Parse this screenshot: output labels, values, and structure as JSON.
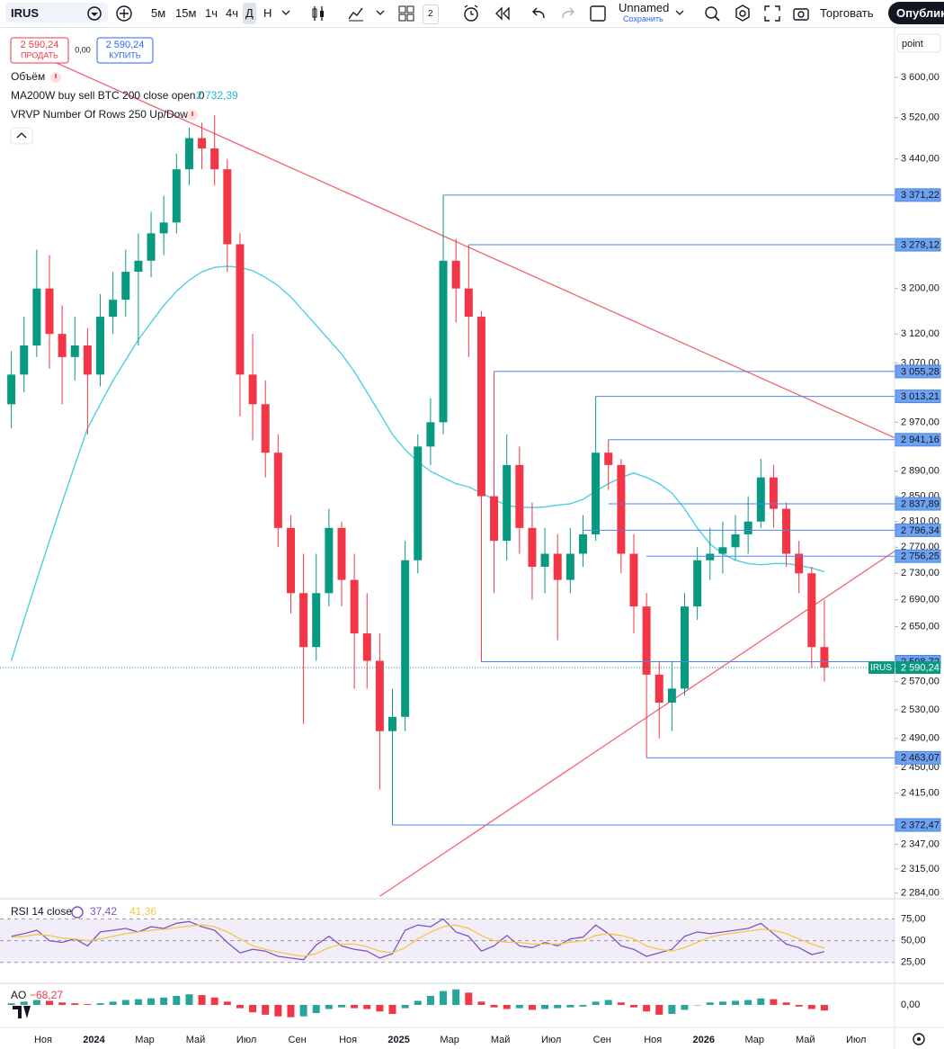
{
  "toolbar": {
    "symbol": "IRUS",
    "intervals": [
      "5м",
      "15м",
      "1ч",
      "4ч",
      "Д",
      "Н"
    ],
    "layouts_count": "2",
    "layout_name": "Unnamed",
    "save": "Сохранить",
    "trade": "Торговать",
    "publish": "Опублико"
  },
  "order_panel": {
    "sell_price": "2 590,24",
    "sell": "ПРОДАТЬ",
    "spread": "0,00",
    "buy_price": "2 590,24",
    "buy": "КУПИТЬ"
  },
  "legend": {
    "volume": "Объём",
    "vrvp": "VRVP Number Of Rows 250 Up/Down"
  },
  "chart_data": [
    {
      "type": "candlestick",
      "scale_label": "point",
      "log_scale": true,
      "grid": false,
      "up_color": "#089981",
      "down_color": "#f23645",
      "categories": [
        null,
        null,
        null,
        "Ноя",
        null,
        null,
        null,
        "2024",
        null,
        null,
        null,
        "Мар",
        null,
        null,
        null,
        "Май",
        null,
        null,
        null,
        "Июл",
        null,
        null,
        null,
        "Сен",
        null,
        null,
        null,
        "Ноя",
        null,
        null,
        null,
        "2025",
        null,
        null,
        null,
        "Мар",
        null,
        null,
        null,
        "Май",
        null,
        null,
        null,
        "Июл",
        null,
        null,
        null,
        "Сен",
        null,
        null,
        null,
        "Ноя",
        null,
        null,
        null,
        "2026",
        null,
        null,
        null,
        "Мар",
        null,
        null,
        null,
        "Май",
        null,
        null,
        null,
        "Июл"
      ],
      "open": [
        3000,
        3050,
        3100,
        3200,
        3120,
        3080,
        3100,
        3050,
        3150,
        3180,
        3230,
        3250,
        3300,
        3320,
        3420,
        3480,
        3460,
        3420,
        3280,
        3050,
        3000,
        2920,
        2800,
        2700,
        2620,
        2700,
        2800,
        2720,
        2640,
        2600,
        2500,
        2520,
        2750,
        2930,
        2970,
        3250,
        3200,
        3150,
        2850,
        2780,
        2900,
        2800,
        2740,
        2760,
        2720,
        2760,
        2790,
        2920,
        2900,
        2760,
        2680,
        2580,
        2540,
        2560,
        2680,
        2750,
        2760,
        2770,
        2790,
        2810,
        2880,
        2830,
        2760,
        2730,
        2620,
        null,
        null,
        null
      ],
      "high": [
        3090,
        3150,
        3270,
        3260,
        3170,
        3150,
        3130,
        3190,
        3230,
        3270,
        3300,
        3340,
        3370,
        3450,
        3500,
        3510,
        3525,
        3440,
        3300,
        3120,
        3040,
        2950,
        2820,
        2760,
        2760,
        2830,
        2810,
        2760,
        2700,
        2640,
        2560,
        2780,
        2950,
        3010,
        3371.22,
        3290,
        3279.12,
        3160,
        3055.28,
        2950,
        2930,
        2840,
        2800,
        2790,
        2800,
        2820,
        3013.21,
        2941.16,
        2910,
        2790,
        2700,
        2600,
        2600,
        2700,
        2770,
        2800,
        2810,
        2820,
        2850,
        2910,
        2900,
        2840,
        2780,
        2740,
        2690,
        null,
        null,
        null
      ],
      "low": [
        2960,
        3020,
        3080,
        3060,
        3000,
        3040,
        2950,
        3030,
        3120,
        3150,
        3100,
        3220,
        3260,
        3300,
        3390,
        3420,
        3390,
        3230,
        2980,
        2940,
        2880,
        2770,
        2670,
        2510,
        2600,
        2680,
        2680,
        2560,
        2560,
        2420,
        2372.47,
        2500,
        2730,
        2900,
        2950,
        3140,
        3080,
        2598.72,
        2700,
        2750,
        2760,
        2690,
        2700,
        2630,
        2700,
        2740,
        2780,
        2860,
        2730,
        2640,
        2463.07,
        2490,
        2500,
        2550,
        2660,
        2720,
        2730,
        2750,
        2760,
        2800,
        2800,
        2740,
        2700,
        2590,
        2570,
        null,
        null,
        null
      ],
      "close": [
        3050,
        3100,
        3200,
        3120,
        3080,
        3100,
        3050,
        3150,
        3180,
        3230,
        3250,
        3300,
        3320,
        3420,
        3480,
        3460,
        3420,
        3280,
        3050,
        3000,
        2920,
        2800,
        2700,
        2620,
        2700,
        2800,
        2720,
        2640,
        2600,
        2500,
        2520,
        2750,
        2930,
        2970,
        3250,
        3200,
        3150,
        2850,
        2780,
        2900,
        2800,
        2740,
        2760,
        2720,
        2760,
        2790,
        2920,
        2900,
        2760,
        2680,
        2580,
        2540,
        2560,
        2680,
        2750,
        2760,
        2770,
        2790,
        2810,
        2880,
        2830,
        2760,
        2730,
        2620,
        2590.24,
        null,
        null,
        null
      ],
      "series": [
        {
          "name": "MA200W buy sell BTC 200 close open 0",
          "color": "#4dd0e1",
          "legend_value": {
            "value": 2732.39,
            "label": "2 732,39"
          },
          "values": [
            2600,
            2660,
            2720,
            2780,
            2840,
            2900,
            2960,
            3000,
            3040,
            3075,
            3110,
            3140,
            3170,
            3195,
            3215,
            3230,
            3238,
            3240,
            3238,
            3232,
            3220,
            3205,
            3185,
            3160,
            3135,
            3110,
            3085,
            3055,
            3020,
            2985,
            2950,
            2925,
            2905,
            2890,
            2880,
            2870,
            2865,
            2855,
            2845,
            2835,
            2833,
            2832,
            2833,
            2836,
            2838,
            2845,
            2858,
            2870,
            2880,
            2887,
            2880,
            2870,
            2855,
            2830,
            2800,
            2775,
            2760,
            2750,
            2745,
            2743,
            2745,
            2745,
            2742,
            2738,
            2732.39,
            null,
            null,
            null
          ]
        }
      ],
      "levels": [
        {
          "value": 3371.22,
          "label": "3 371,22",
          "from": 34
        },
        {
          "value": 3279.12,
          "label": "3 279,12",
          "from": 36
        },
        {
          "value": 3055.28,
          "label": "3 055,28",
          "from": 38
        },
        {
          "value": 3013.21,
          "label": "3 013,21",
          "from": 46
        },
        {
          "value": 2941.16,
          "label": "2 941,16",
          "from": 47
        },
        {
          "value": 2837.89,
          "label": "2 837,89",
          "from": 47
        },
        {
          "value": 2796.34,
          "label": "2 796,34",
          "from": 45
        },
        {
          "value": 2756.25,
          "label": "2 756,25",
          "from": 50
        },
        {
          "value": 2598.72,
          "label": "2 598,72",
          "from": 37
        },
        {
          "value": 2463.07,
          "label": "2 463,07",
          "from": 50
        },
        {
          "value": 2372.47,
          "label": "2 372,47",
          "from": 30
        }
      ],
      "level_color": "#4a86e8",
      "last_price": {
        "symbol": "IRUS",
        "value": 2590.24,
        "label": "2 590,24",
        "color": "#089981"
      },
      "trendlines": [
        {
          "color": "#f0636e",
          "points": [
            [
              2,
              3647
            ],
            [
              70,
              2940
            ]
          ]
        },
        {
          "color": "#f0636e",
          "points": [
            [
              29,
              2280
            ],
            [
              70,
              2770
            ]
          ]
        }
      ],
      "ylim": [
        2278,
        3684
      ],
      "yticks": [
        {
          "value": 3600,
          "label": "3 600,00"
        },
        {
          "value": 3520,
          "label": "3 520,00"
        },
        {
          "value": 3440,
          "label": "3 440,00"
        },
        {
          "value": 3200,
          "label": "3 200,00"
        },
        {
          "value": 3120,
          "label": "3 120,00"
        },
        {
          "value": 3070,
          "label": "3 070,00"
        },
        {
          "value": 2970,
          "label": "2 970,00"
        },
        {
          "value": 2890,
          "label": "2 890,00"
        },
        {
          "value": 2850,
          "label": "2 850,00"
        },
        {
          "value": 2810,
          "label": "2 810,00"
        },
        {
          "value": 2770,
          "label": "2 770,00"
        },
        {
          "value": 2730,
          "label": "2 730,00"
        },
        {
          "value": 2690,
          "label": "2 690,00"
        },
        {
          "value": 2650,
          "label": "2 650,00"
        },
        {
          "value": 2570,
          "label": "2 570,00"
        },
        {
          "value": 2530,
          "label": "2 530,00"
        },
        {
          "value": 2490,
          "label": "2 490,00"
        },
        {
          "value": 2450,
          "label": "2 450,00"
        },
        {
          "value": 2415,
          "label": "2 415,00"
        },
        {
          "value": 2347,
          "label": "2 347,00"
        },
        {
          "value": 2315,
          "label": "2 315,00"
        },
        {
          "value": 2284,
          "label": "2 284,00"
        }
      ]
    },
    {
      "type": "line",
      "title": "RSI 14 close",
      "ylim": [
        4,
        92
      ],
      "yticks": [
        {
          "value": 75,
          "label": "75,00"
        },
        {
          "value": 50,
          "label": "50,00"
        },
        {
          "value": 25,
          "label": "25,00"
        }
      ],
      "band_color": "#7e57c2",
      "series": [
        {
          "color": "#7e57c2",
          "legend_value": {
            "value": 37.42,
            "label": "37,42"
          },
          "values": [
            55,
            58,
            62,
            50,
            48,
            52,
            44,
            60,
            62,
            64,
            60,
            66,
            64,
            70,
            72,
            66,
            62,
            48,
            36,
            40,
            38,
            32,
            30,
            28,
            45,
            55,
            44,
            40,
            38,
            30,
            35,
            62,
            68,
            66,
            75,
            60,
            55,
            38,
            44,
            56,
            44,
            42,
            48,
            44,
            52,
            54,
            68,
            58,
            44,
            40,
            32,
            36,
            40,
            55,
            60,
            58,
            60,
            62,
            64,
            70,
            58,
            46,
            42,
            34,
            37.42,
            null,
            null,
            null
          ]
        },
        {
          "color": "#f7c548",
          "legend_value": {
            "value": 41.36,
            "label": "41,36"
          },
          "values": [
            54,
            55,
            57,
            56,
            53,
            52,
            50,
            52,
            55,
            58,
            60,
            62,
            63,
            65,
            67,
            68,
            66,
            60,
            52,
            44,
            40,
            37,
            34,
            32,
            35,
            42,
            46,
            46,
            43,
            38,
            36,
            42,
            52,
            60,
            66,
            68,
            64,
            56,
            50,
            48,
            48,
            46,
            46,
            46,
            48,
            50,
            56,
            58,
            56,
            52,
            44,
            40,
            38,
            42,
            48,
            54,
            57,
            59,
            61,
            63,
            62,
            58,
            52,
            46,
            41.36,
            null,
            null,
            null
          ]
        }
      ]
    },
    {
      "type": "histogram",
      "title": "AO",
      "ylim": [
        -220,
        220
      ],
      "yticks": [
        {
          "value": 0,
          "label": "0,00"
        }
      ],
      "rising_color": "#26a69a",
      "falling_color": "#f23645",
      "legend_value": {
        "value": -68.27,
        "label": "−68,27"
      },
      "values": [
        20,
        40,
        60,
        50,
        30,
        20,
        10,
        20,
        40,
        60,
        70,
        80,
        90,
        110,
        130,
        120,
        90,
        40,
        -40,
        -90,
        -120,
        -140,
        -150,
        -140,
        -100,
        -50,
        -30,
        -40,
        -50,
        -80,
        -110,
        -40,
        50,
        110,
        170,
        190,
        150,
        40,
        -30,
        -50,
        -40,
        -60,
        -50,
        -40,
        -30,
        -20,
        40,
        60,
        30,
        -30,
        -80,
        -120,
        -110,
        -60,
        0,
        30,
        40,
        50,
        60,
        80,
        70,
        30,
        -20,
        -50,
        -68.27,
        null,
        null,
        null
      ]
    }
  ]
}
